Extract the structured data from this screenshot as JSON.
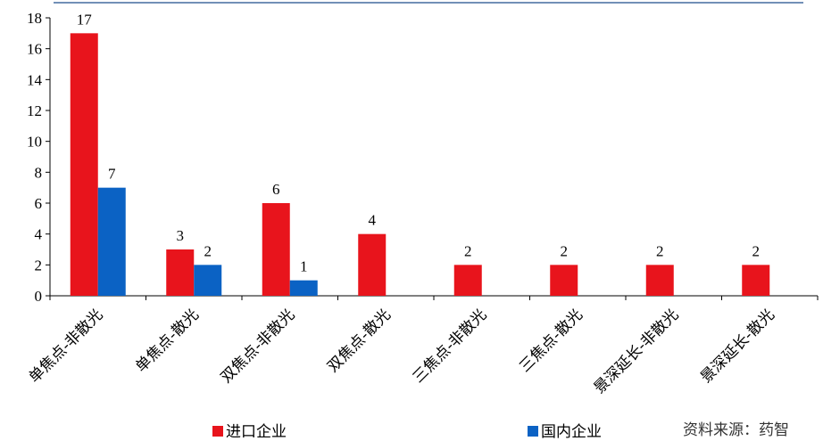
{
  "chart_data": {
    "type": "bar",
    "title": "",
    "xlabel": "",
    "ylabel": "",
    "ylim": [
      0,
      18
    ],
    "yticks": [
      0,
      2,
      4,
      6,
      8,
      10,
      12,
      14,
      16,
      18
    ],
    "grid": false,
    "legend_position": "bottom",
    "categories": [
      "单焦点-非散光",
      "单焦点-散光",
      "双焦点-非散光",
      "双焦点-散光",
      "三焦点-非散光",
      "三焦点-散光",
      "景深延长-非散光",
      "景深延长-散光"
    ],
    "series": [
      {
        "name": "进口企业",
        "color": "#e8141c",
        "values": [
          17,
          3,
          6,
          4,
          2,
          2,
          2,
          2
        ]
      },
      {
        "name": "国内企业",
        "color": "#0b62c4",
        "values": [
          7,
          2,
          1,
          0,
          0,
          0,
          0,
          0
        ]
      }
    ],
    "source_note": "资料来源：药智"
  },
  "colors": {
    "top_border": "#1f4e8c",
    "axis": "#000000"
  }
}
